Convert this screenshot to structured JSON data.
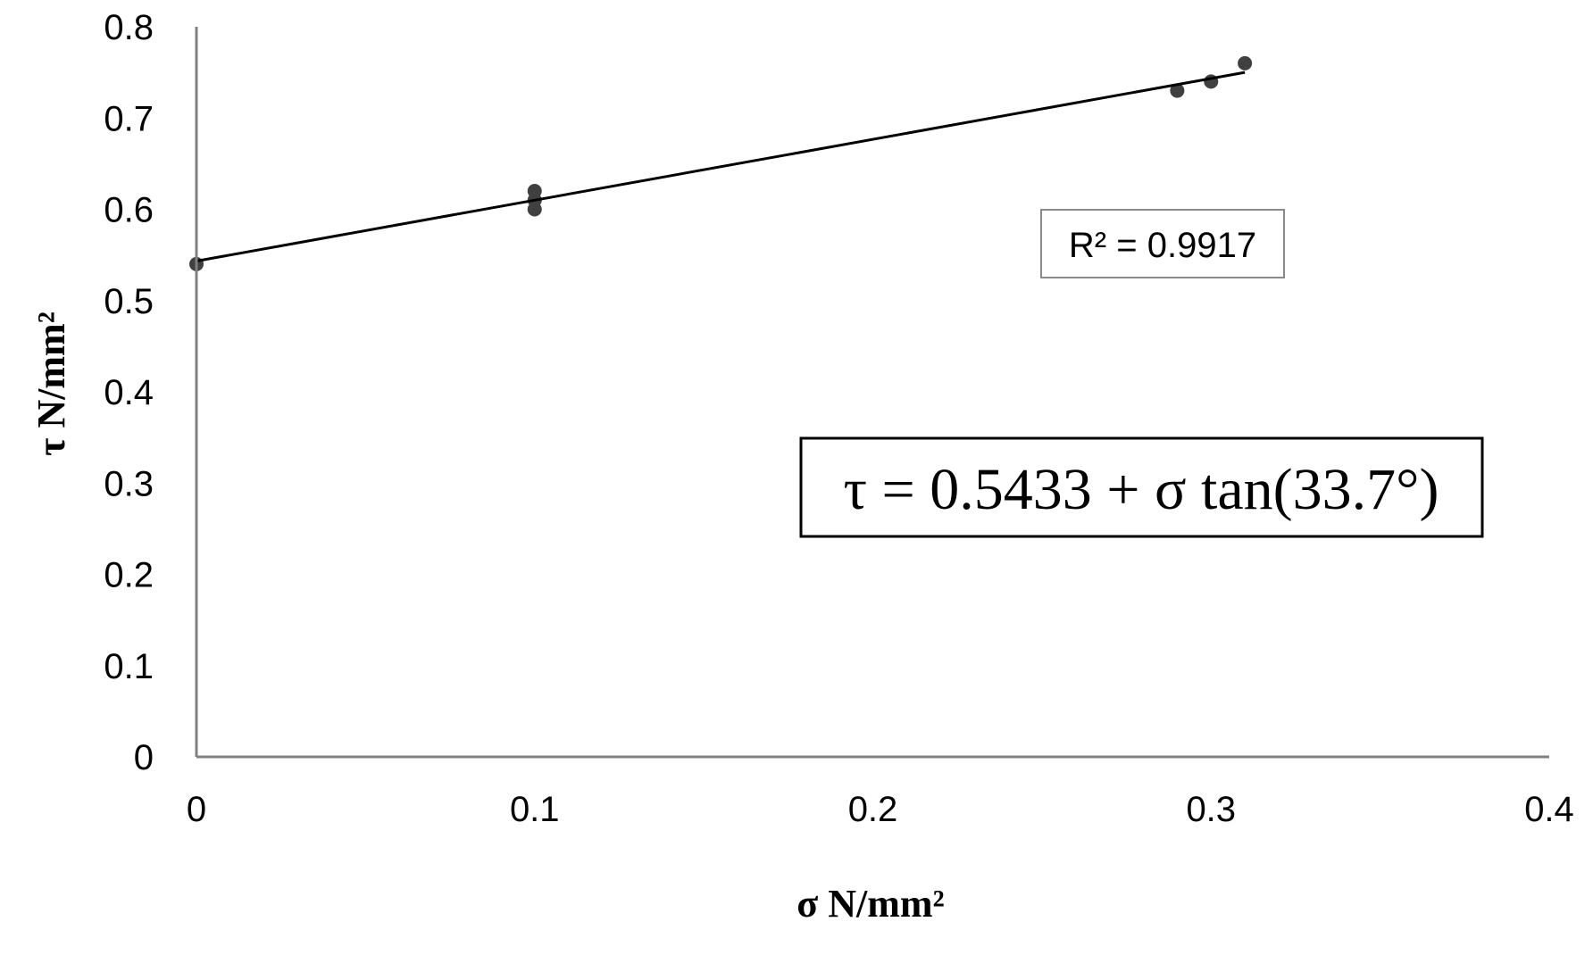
{
  "chart_data": {
    "type": "scatter",
    "xlabel": "σ N/mm²",
    "ylabel": "τ N/mm²",
    "xlim": [
      0,
      0.4
    ],
    "ylim": [
      0,
      0.8
    ],
    "x_ticks": [
      "0",
      "0.1",
      "0.2",
      "0.3",
      "0.4"
    ],
    "y_ticks": [
      "0",
      "0.1",
      "0.2",
      "0.3",
      "0.4",
      "0.5",
      "0.6",
      "0.7",
      "0.8"
    ],
    "grid": false,
    "series": [
      {
        "points": [
          {
            "x": 0.0,
            "y": 0.54
          },
          {
            "x": 0.1,
            "y": 0.6
          },
          {
            "x": 0.1,
            "y": 0.61
          },
          {
            "x": 0.1,
            "y": 0.62
          },
          {
            "x": 0.29,
            "y": 0.73
          },
          {
            "x": 0.3,
            "y": 0.74
          },
          {
            "x": 0.31,
            "y": 0.76
          }
        ],
        "color": "#404040"
      }
    ],
    "trendline": {
      "x_range": [
        0,
        0.31
      ],
      "intercept": 0.5433,
      "slope": 0.6668,
      "color": "#000000"
    },
    "annotations": {
      "r_squared": "R² = 0.9917",
      "equation": "τ = 0.5433 + σ tan(33.7°)"
    }
  }
}
